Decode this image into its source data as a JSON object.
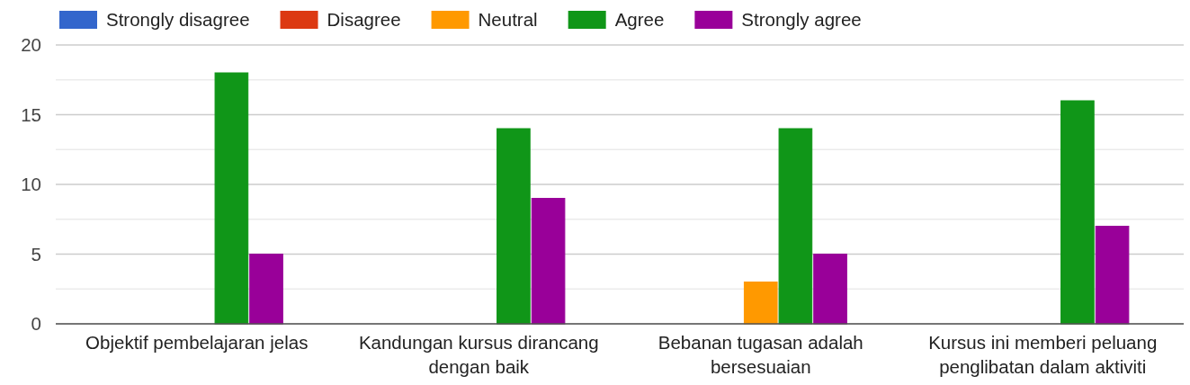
{
  "chart_data": {
    "type": "bar",
    "categories": [
      "Objektif pembelajaran jelas",
      "Kandungan kursus dirancang dengan baik",
      "Bebanan tugasan adalah bersesuaian",
      "Kursus ini memberi peluang penglibatan dalam aktiviti"
    ],
    "series": [
      {
        "name": "Strongly disagree",
        "color": "#3366cc",
        "values": [
          0,
          0,
          0,
          0
        ]
      },
      {
        "name": "Disagree",
        "color": "#dc3912",
        "values": [
          0,
          0,
          0,
          0
        ]
      },
      {
        "name": "Neutral",
        "color": "#ff9900",
        "values": [
          0,
          0,
          3,
          0
        ]
      },
      {
        "name": "Agree",
        "color": "#109618",
        "values": [
          18,
          14,
          14,
          16
        ]
      },
      {
        "name": "Strongly agree",
        "color": "#990099",
        "values": [
          5,
          9,
          5,
          7
        ]
      }
    ],
    "ylim": [
      0,
      20
    ],
    "yticks": [
      0,
      {
        "value": 2.5,
        "label": null
      },
      5,
      {
        "value": 7.5,
        "label": null
      },
      10,
      {
        "value": 12.5,
        "label": null
      },
      15,
      {
        "value": 17.5,
        "label": null
      },
      20
    ],
    "grid": true,
    "legend": "top left"
  }
}
